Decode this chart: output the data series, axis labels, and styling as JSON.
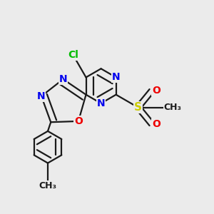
{
  "background_color": "#ebebeb",
  "bond_color": "#1a1a1a",
  "atom_colors": {
    "N": "#0000ee",
    "O": "#ee0000",
    "S": "#cccc00",
    "Cl": "#00bb00",
    "C": "#1a1a1a"
  },
  "figsize": [
    3.0,
    3.0
  ],
  "dpi": 100
}
